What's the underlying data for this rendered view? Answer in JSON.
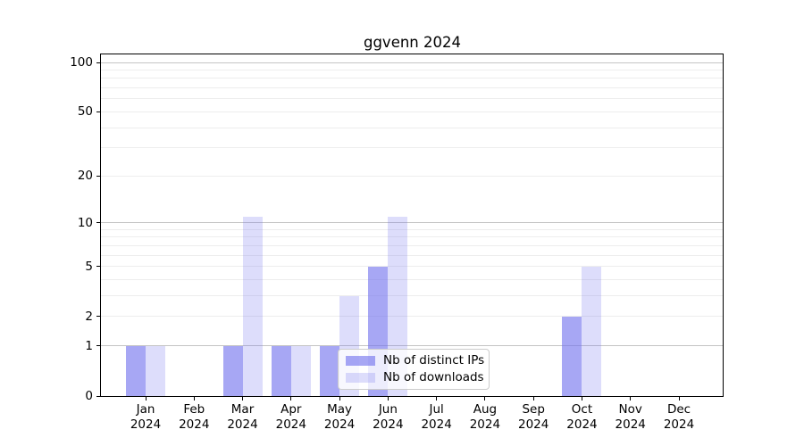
{
  "figure": {
    "background": "#ffffff",
    "text_color": "#000000",
    "spine_color": "#000000",
    "gridline_minor_color": "#ededed",
    "gridline_major_color": "#c4c4c4",
    "legend_border_color": "#cccccc"
  },
  "chart_data": {
    "type": "bar",
    "title": "ggvenn 2024",
    "xlabel": "",
    "ylabel": "",
    "yscale": "log1p",
    "ylim": [
      0,
      112
    ],
    "yticks": [
      0,
      1,
      2,
      5,
      10,
      20,
      50,
      100
    ],
    "grid": "horizontal, minor and major (majors at powers of 10)",
    "legend_position": "lower center",
    "categories": [
      {
        "month": "Jan",
        "year": "2024"
      },
      {
        "month": "Feb",
        "year": "2024"
      },
      {
        "month": "Mar",
        "year": "2024"
      },
      {
        "month": "Apr",
        "year": "2024"
      },
      {
        "month": "May",
        "year": "2024"
      },
      {
        "month": "Jun",
        "year": "2024"
      },
      {
        "month": "Jul",
        "year": "2024"
      },
      {
        "month": "Aug",
        "year": "2024"
      },
      {
        "month": "Sep",
        "year": "2024"
      },
      {
        "month": "Oct",
        "year": "2024"
      },
      {
        "month": "Nov",
        "year": "2024"
      },
      {
        "month": "Dec",
        "year": "2024"
      }
    ],
    "series": [
      {
        "name": "Nb of distinct IPs",
        "color": "rgba(113,113,238,0.62)",
        "values": [
          1,
          0,
          1,
          1,
          1,
          5,
          0,
          0,
          0,
          2,
          0,
          0
        ]
      },
      {
        "name": "Nb of downloads",
        "color": "rgba(113,113,238,0.24)",
        "values": [
          1,
          0,
          11,
          1,
          3,
          11,
          0,
          0,
          0,
          5,
          0,
          0
        ]
      }
    ]
  }
}
